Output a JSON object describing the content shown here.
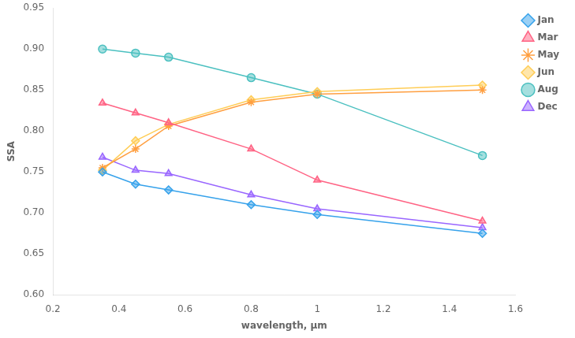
{
  "chart_data": {
    "type": "line",
    "x": [
      0.35,
      0.45,
      0.55,
      0.8,
      1.0,
      1.5
    ],
    "series": [
      {
        "name": "Jan",
        "marker": "diamond",
        "values": [
          0.75,
          0.735,
          0.728,
          0.71,
          0.698,
          0.675
        ]
      },
      {
        "name": "Mar",
        "marker": "triangle",
        "values": [
          0.834,
          0.822,
          0.81,
          0.778,
          0.74,
          0.69
        ]
      },
      {
        "name": "May",
        "marker": "star",
        "values": [
          0.755,
          0.778,
          0.806,
          0.835,
          0.845,
          0.85
        ]
      },
      {
        "name": "Jun",
        "marker": "diamond",
        "values": [
          0.752,
          0.788,
          0.808,
          0.838,
          0.848,
          0.856
        ]
      },
      {
        "name": "Aug",
        "marker": "circle",
        "values": [
          0.9,
          0.895,
          0.89,
          0.865,
          0.845,
          0.77
        ]
      },
      {
        "name": "Dec",
        "marker": "triangle",
        "values": [
          0.768,
          0.752,
          0.748,
          0.722,
          0.705,
          0.682
        ]
      }
    ],
    "x_label": "wavelength, μm",
    "y_label": "SSA",
    "xlim": [
      0.2,
      1.6
    ],
    "ylim": [
      0.6,
      0.95
    ],
    "xticks": [
      0.2,
      0.4,
      0.6,
      0.8,
      1,
      1.2,
      1.4,
      1.6
    ],
    "yticks": [
      {
        "value": 0.6,
        "label": "0.60"
      },
      0.65,
      {
        "value": 0.7,
        "label": "0.70"
      },
      0.75,
      {
        "value": 0.8,
        "label": "0.80"
      },
      0.85,
      {
        "value": 0.9,
        "label": "0.90"
      },
      0.95
    ],
    "legend": "right",
    "grid": false
  }
}
